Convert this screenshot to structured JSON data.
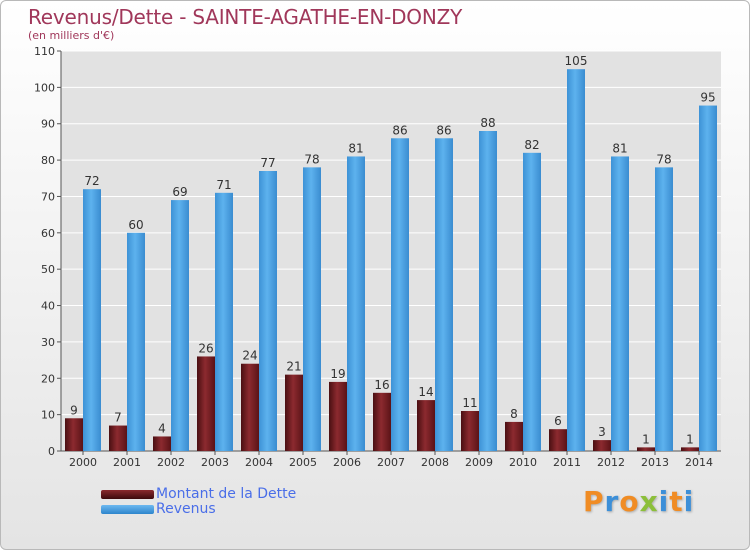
{
  "header": {
    "title": "Revenus/Dette - SAINTE-AGATHE-EN-DONZY",
    "subtitle": "(en milliers d'€)"
  },
  "logo": {
    "text": "Proxiti"
  },
  "colors": {
    "debt": "#6b1a1e",
    "revenue": "#4aa2e4",
    "axis_text": "#333333",
    "grid": "#ffffff"
  },
  "chart_data": {
    "type": "bar",
    "title": "Revenus/Dette - SAINTE-AGATHE-EN-DONZY",
    "subtitle": "(en milliers d'€)",
    "categories": [
      "2000",
      "2001",
      "2002",
      "2003",
      "2004",
      "2005",
      "2006",
      "2007",
      "2008",
      "2009",
      "2010",
      "2011",
      "2012",
      "2013",
      "2014"
    ],
    "series": [
      {
        "name": "Montant de la Dette",
        "values": [
          9,
          7,
          4,
          26,
          24,
          21,
          19,
          16,
          14,
          11,
          8,
          6,
          3,
          1,
          1
        ]
      },
      {
        "name": "Revenus",
        "values": [
          72,
          60,
          69,
          71,
          77,
          78,
          81,
          86,
          86,
          88,
          82,
          105,
          81,
          78,
          95
        ]
      }
    ],
    "ylim": [
      0,
      110
    ],
    "yticks": [
      0,
      10,
      20,
      30,
      40,
      50,
      60,
      70,
      80,
      90,
      100,
      110
    ],
    "grid": true,
    "legend": "bottom-left",
    "data_labels": true
  }
}
